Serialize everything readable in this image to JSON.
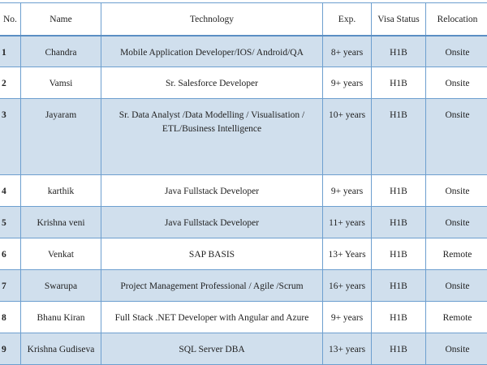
{
  "table": {
    "columns": [
      "No.",
      "Name",
      "Technology",
      "Exp.",
      "Visa Status",
      "Relocation"
    ],
    "rows": [
      [
        "1",
        "Chandra",
        "Mobile Application Developer/IOS/ Android/QA",
        "8+ years",
        "H1B",
        "Onsite"
      ],
      [
        "2",
        "Vamsi",
        "Sr. Salesforce Developer",
        "9+ years",
        "H1B",
        "Onsite"
      ],
      [
        "3",
        "Jayaram",
        "Sr. Data Analyst /Data Modelling / Visualisation / ETL/Business Intelligence",
        "10+ years",
        "H1B",
        "Onsite"
      ],
      [
        "4",
        "karthik",
        "Java Fullstack Developer",
        "9+ years",
        "H1B",
        "Onsite"
      ],
      [
        "5",
        "Krishna veni",
        "Java Fullstack Developer",
        "11+ years",
        "H1B",
        "Onsite"
      ],
      [
        "6",
        "Venkat",
        "SAP BASIS",
        "13+ Years",
        "H1B",
        "Remote"
      ],
      [
        "7",
        "Swarupa",
        "Project Management Professional / Agile /Scrum",
        "16+ years",
        "H1B",
        "Onsite"
      ],
      [
        "8",
        "Bhanu Kiran",
        "Full Stack .NET Developer with Angular and Azure",
        "9+ years",
        "H1B",
        "Remote"
      ],
      [
        "9",
        "Krishna Gudiseva",
        "SQL Server DBA",
        "13+ years",
        "H1B",
        "Onsite"
      ]
    ]
  }
}
